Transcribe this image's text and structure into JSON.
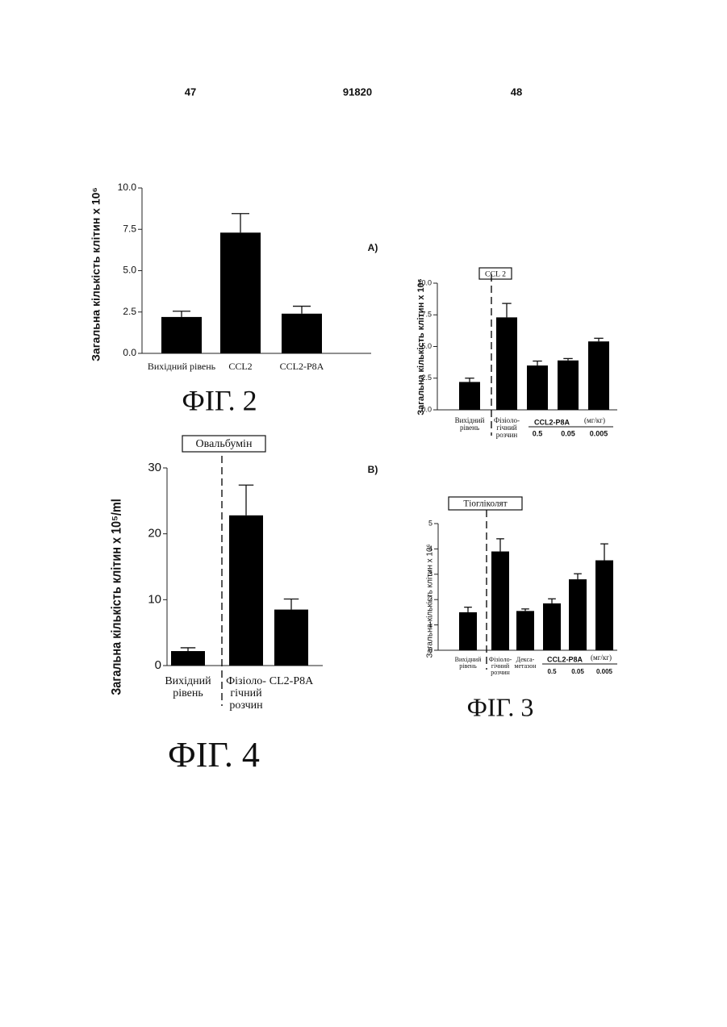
{
  "header": {
    "left_page": "47",
    "patent_number": "91820",
    "right_page": "48"
  },
  "figures": {
    "fig2": "ФІГ. 2",
    "fig3": "ФІГ. 3",
    "fig4": "ФІГ. 4"
  },
  "chart_data": [
    {
      "type": "bar",
      "ylabel": "Загальна кількість клітин х 10⁶",
      "categories": [
        "Вихідний рівень",
        "CCL2",
        "CCL2-P8A"
      ],
      "values": [
        2.2,
        7.3,
        2.4
      ],
      "errors": [
        0.35,
        1.15,
        0.45
      ],
      "color": "#000000",
      "ylim": [
        0,
        10
      ],
      "yticks": [
        {
          "value": 0,
          "label": "0.0"
        },
        {
          "value": 2.5,
          "label": "2.5"
        },
        {
          "value": 5,
          "label": "5.0"
        },
        {
          "value": 7.5,
          "label": "7.5"
        },
        {
          "value": 10,
          "label": "10.0"
        }
      ]
    },
    {
      "type": "bar",
      "panel_label": "А)",
      "title": "CCL 2",
      "ylabel": "Загальна кількість клітин х 10⁶",
      "categories": [
        "Вихідний\nрівень",
        "Фізіоло-\nгічний\nрозчин",
        "0.5",
        "0.05",
        "0.005"
      ],
      "group_label": "CCL2-P8A",
      "unit_label": "(мг/кг)",
      "values": [
        2.2,
        7.3,
        3.5,
        3.9,
        5.4
      ],
      "errors": [
        0.3,
        1.1,
        0.35,
        0.15,
        0.25
      ],
      "color": "#000000",
      "ylim": [
        0,
        10
      ],
      "yticks": [
        {
          "value": 0,
          "label": "0.0"
        },
        {
          "value": 2.5,
          "label": "2.5"
        },
        {
          "value": 5,
          "label": "5.0"
        },
        {
          "value": 7.5,
          "label": "7.5"
        },
        {
          "value": 10,
          "label": "10.0"
        }
      ]
    },
    {
      "type": "bar",
      "panel_label": "В)",
      "title": "Тіогліколят",
      "ylabel": "Загальна кількість клітин х 10⁶",
      "categories": [
        "Вихідний\nрівень",
        "Фізіоло-\nгічний\nрозчин",
        "Декса-\nметазон",
        "0.5",
        "0.05",
        "0.005"
      ],
      "group_label": "CCL2-P8A",
      "unit_label": "(мг/кг)",
      "values": [
        1.5,
        3.9,
        1.55,
        1.85,
        2.8,
        3.55
      ],
      "errors": [
        0.2,
        0.5,
        0.08,
        0.18,
        0.22,
        0.65
      ],
      "color": "#000000",
      "ylim": [
        0,
        5
      ],
      "yticks": [
        0,
        1,
        2,
        3,
        4,
        5
      ]
    },
    {
      "type": "bar",
      "title": "Овальбумін",
      "ylabel": "Загальна кількість клітин х 10⁵/ml",
      "categories": [
        "Вихідний\nрівень",
        "Фізіоло-\nгічний\nрозчин",
        "CL2-P8A"
      ],
      "values": [
        2.2,
        22.8,
        8.5
      ],
      "errors": [
        0.5,
        4.6,
        1.6
      ],
      "color": "#000000",
      "ylim": [
        0,
        30
      ],
      "yticks": [
        0,
        10,
        20,
        30
      ]
    }
  ]
}
